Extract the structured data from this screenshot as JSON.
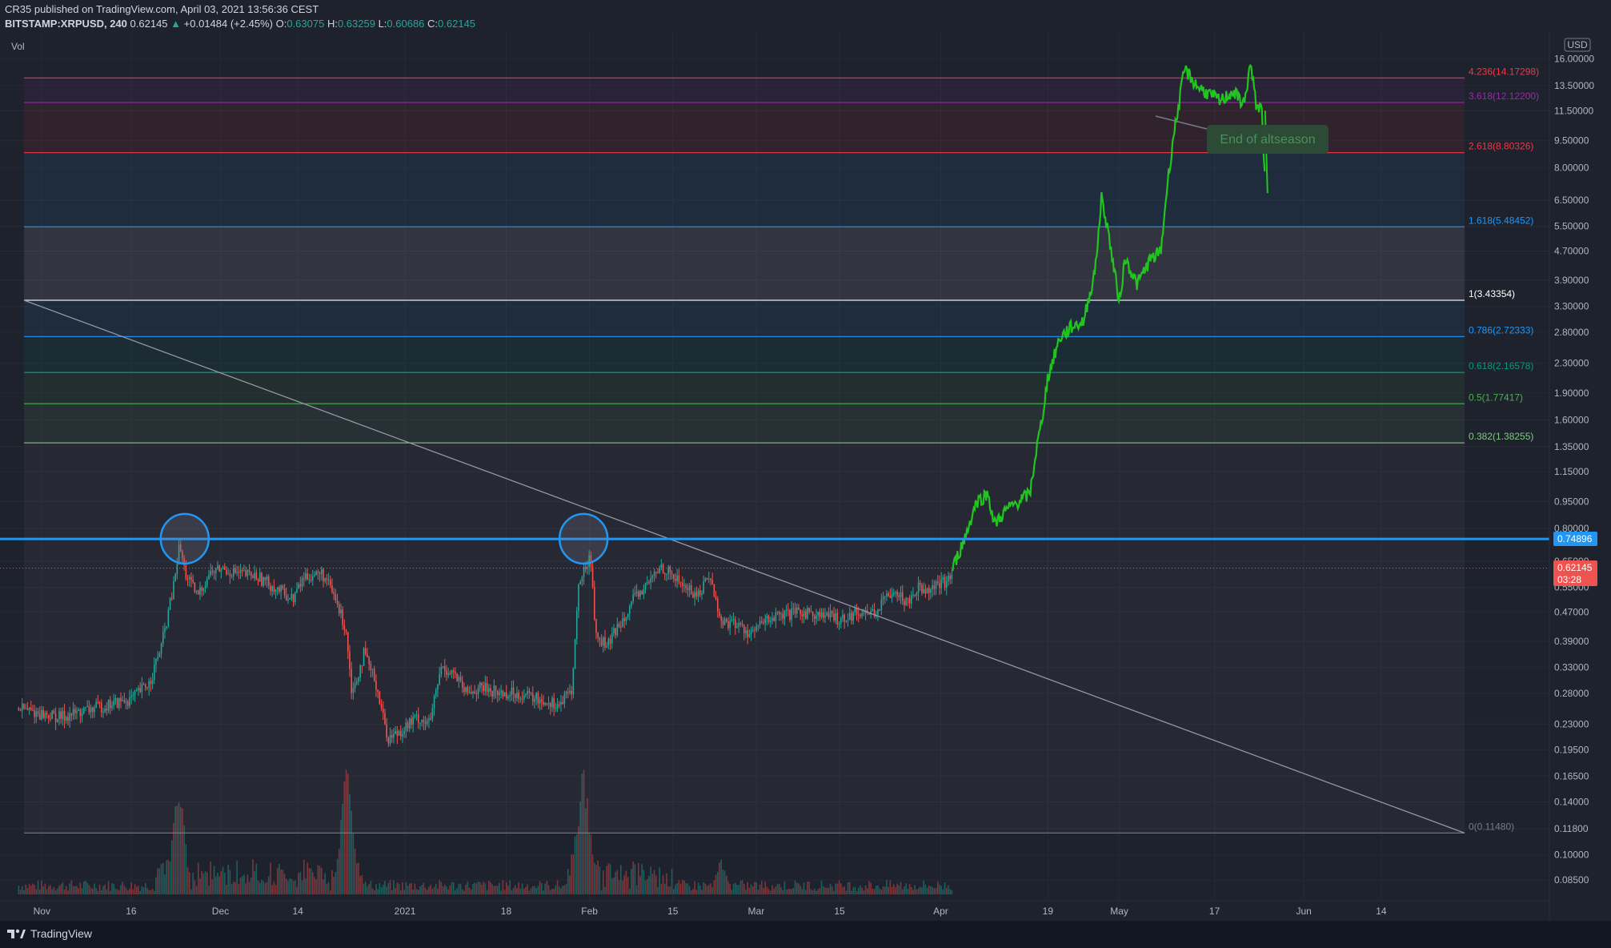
{
  "header": {
    "publisher_line": "CR35 published on TradingView.com, April 03, 2021 13:56:36 CEST",
    "symbol": "BITSTAMP:XRPUSD, 240",
    "last": "0.62145",
    "change": "+0.01484 (+2.45%)",
    "o_label": "O:",
    "o": "0.63075",
    "h_label": "H:",
    "h": "0.63259",
    "l_label": "L:",
    "l": "0.60686",
    "c_label": "C:",
    "c": "0.62145"
  },
  "vol_label": "Vol",
  "currency": "USD",
  "annotation": "End of altseason",
  "price_badge": {
    "price": "0.62145",
    "countdown": "03:28"
  },
  "level_badge": "0.74896",
  "footer": {
    "brand": "TradingView"
  },
  "colors": {
    "bg": "#1e222d",
    "up": "#26a69a",
    "down": "#ef5350",
    "projection": "#22c51f",
    "level_line": "#2196f3"
  },
  "chart_data": {
    "type": "candlestick",
    "y_scale": "log",
    "ylim": [
      0.0745,
      19.0
    ],
    "y_ticks": [
      "16.00000",
      "13.50000",
      "11.50000",
      "9.50000",
      "8.00000",
      "6.50000",
      "5.50000",
      "4.70000",
      "3.90000",
      "3.30000",
      "2.80000",
      "2.30000",
      "1.90000",
      "1.60000",
      "1.35000",
      "1.15000",
      "0.95000",
      "0.80000",
      "0.65000",
      "0.55000",
      "0.47000",
      "0.39000",
      "0.33000",
      "0.28000",
      "0.23000",
      "0.19500",
      "0.16500",
      "0.14000",
      "0.11800",
      "0.10000",
      "0.08500"
    ],
    "x_ticks": [
      {
        "label": "Nov",
        "date": "2020-11-01"
      },
      {
        "label": "16",
        "date": "2020-11-16"
      },
      {
        "label": "Dec",
        "date": "2020-12-01"
      },
      {
        "label": "14",
        "date": "2020-12-14"
      },
      {
        "label": "2021",
        "date": "2021-01-01"
      },
      {
        "label": "18",
        "date": "2021-01-18"
      },
      {
        "label": "Feb",
        "date": "2021-02-01"
      },
      {
        "label": "15",
        "date": "2021-02-15"
      },
      {
        "label": "Mar",
        "date": "2021-03-01"
      },
      {
        "label": "15",
        "date": "2021-03-15"
      },
      {
        "label": "Apr",
        "date": "2021-04-01"
      },
      {
        "label": "19",
        "date": "2021-04-19"
      },
      {
        "label": "May",
        "date": "2021-05-01"
      },
      {
        "label": "17",
        "date": "2021-05-17"
      },
      {
        "label": "Jun",
        "date": "2021-06-01"
      },
      {
        "label": "14",
        "date": "2021-06-14"
      }
    ],
    "price_path": [
      [
        "2020-10-28",
        0.255
      ],
      [
        "2020-11-01",
        0.245
      ],
      [
        "2020-11-04",
        0.24
      ],
      [
        "2020-11-08",
        0.25
      ],
      [
        "2020-11-12",
        0.26
      ],
      [
        "2020-11-16",
        0.27
      ],
      [
        "2020-11-19",
        0.3
      ],
      [
        "2020-11-21",
        0.38
      ],
      [
        "2020-11-23",
        0.55
      ],
      [
        "2020-11-24",
        0.72
      ],
      [
        "2020-11-25",
        0.6
      ],
      [
        "2020-11-27",
        0.52
      ],
      [
        "2020-11-29",
        0.6
      ],
      [
        "2020-12-01",
        0.62
      ],
      [
        "2020-12-04",
        0.6
      ],
      [
        "2020-12-07",
        0.59
      ],
      [
        "2020-12-10",
        0.55
      ],
      [
        "2020-12-13",
        0.51
      ],
      [
        "2020-12-15",
        0.59
      ],
      [
        "2020-12-18",
        0.6
      ],
      [
        "2020-12-20",
        0.52
      ],
      [
        "2020-12-22",
        0.42
      ],
      [
        "2020-12-23",
        0.28
      ],
      [
        "2020-12-25",
        0.36
      ],
      [
        "2020-12-27",
        0.3
      ],
      [
        "2020-12-29",
        0.21
      ],
      [
        "2020-12-31",
        0.22
      ],
      [
        "2021-01-03",
        0.24
      ],
      [
        "2021-01-05",
        0.23
      ],
      [
        "2021-01-07",
        0.33
      ],
      [
        "2021-01-09",
        0.32
      ],
      [
        "2021-01-11",
        0.28
      ],
      [
        "2021-01-14",
        0.29
      ],
      [
        "2021-01-17",
        0.28
      ],
      [
        "2021-01-20",
        0.28
      ],
      [
        "2021-01-23",
        0.27
      ],
      [
        "2021-01-27",
        0.26
      ],
      [
        "2021-01-29",
        0.29
      ],
      [
        "2021-01-30",
        0.55
      ],
      [
        "2021-02-01",
        0.68
      ],
      [
        "2021-02-02",
        0.4
      ],
      [
        "2021-02-04",
        0.38
      ],
      [
        "2021-02-06",
        0.44
      ],
      [
        "2021-02-08",
        0.5
      ],
      [
        "2021-02-11",
        0.57
      ],
      [
        "2021-02-13",
        0.63
      ],
      [
        "2021-02-16",
        0.57
      ],
      [
        "2021-02-19",
        0.52
      ],
      [
        "2021-02-21",
        0.6
      ],
      [
        "2021-02-23",
        0.44
      ],
      [
        "2021-02-25",
        0.44
      ],
      [
        "2021-02-28",
        0.41
      ],
      [
        "2021-03-03",
        0.45
      ],
      [
        "2021-03-06",
        0.46
      ],
      [
        "2021-03-09",
        0.47
      ],
      [
        "2021-03-12",
        0.46
      ],
      [
        "2021-03-15",
        0.45
      ],
      [
        "2021-03-18",
        0.47
      ],
      [
        "2021-03-21",
        0.47
      ],
      [
        "2021-03-24",
        0.55
      ],
      [
        "2021-03-26",
        0.5
      ],
      [
        "2021-03-28",
        0.55
      ],
      [
        "2021-03-30",
        0.55
      ],
      [
        "2021-04-02",
        0.57
      ],
      [
        "2021-04-03",
        0.62
      ]
    ],
    "projection_path": [
      [
        "2021-04-03",
        0.62
      ],
      [
        "2021-04-05",
        0.75
      ],
      [
        "2021-04-07",
        0.95
      ],
      [
        "2021-04-09",
        1.0
      ],
      [
        "2021-04-10",
        0.82
      ],
      [
        "2021-04-12",
        0.9
      ],
      [
        "2021-04-14",
        0.95
      ],
      [
        "2021-04-16",
        1.0
      ],
      [
        "2021-04-17",
        1.3
      ],
      [
        "2021-04-18",
        1.6
      ],
      [
        "2021-04-19",
        2.1
      ],
      [
        "2021-04-21",
        2.7
      ],
      [
        "2021-04-23",
        2.9
      ],
      [
        "2021-04-25",
        3.0
      ],
      [
        "2021-04-27",
        4.2
      ],
      [
        "2021-04-28",
        6.6
      ],
      [
        "2021-04-29",
        5.5
      ],
      [
        "2021-04-30",
        4.3
      ],
      [
        "2021-05-01",
        3.4
      ],
      [
        "2021-05-02",
        4.5
      ],
      [
        "2021-05-04",
        3.8
      ],
      [
        "2021-05-06",
        4.4
      ],
      [
        "2021-05-08",
        4.7
      ],
      [
        "2021-05-09",
        7.0
      ],
      [
        "2021-05-10",
        9.5
      ],
      [
        "2021-05-11",
        12.0
      ],
      [
        "2021-05-12",
        15.0
      ],
      [
        "2021-05-14",
        13.5
      ],
      [
        "2021-05-16",
        12.8
      ],
      [
        "2021-05-18",
        12.2
      ],
      [
        "2021-05-20",
        13.0
      ],
      [
        "2021-05-21",
        12.5
      ],
      [
        "2021-05-22",
        12.0
      ],
      [
        "2021-05-23",
        15.5
      ],
      [
        "2021-05-24",
        12.0
      ],
      [
        "2021-05-25",
        11.5
      ],
      [
        "2021-05-25.5",
        7.0
      ]
    ],
    "volume_peaks": [
      [
        "2020-11-24",
        0.9
      ],
      [
        "2020-12-22",
        1.0
      ],
      [
        "2020-12-23",
        0.45
      ],
      [
        "2021-01-30",
        0.55
      ],
      [
        "2021-01-31",
        1.0
      ],
      [
        "2021-02-23",
        0.3
      ]
    ],
    "fib_levels": [
      {
        "label": "4.236(14.17298)",
        "value": 14.17298,
        "color": "#f23645"
      },
      {
        "label": "3.618(12.12200)",
        "value": 12.122,
        "color": "#9c27b0"
      },
      {
        "label": "2.618(8.80326)",
        "value": 8.80326,
        "color": "#f23645"
      },
      {
        "label": "1.618(5.48452)",
        "value": 5.48452,
        "color": "#2196f3"
      },
      {
        "label": "1(3.43354)",
        "value": 3.43354,
        "color": "#ffffff"
      },
      {
        "label": "0.786(2.72333)",
        "value": 2.72333,
        "color": "#2196f3"
      },
      {
        "label": "0.618(2.16578)",
        "value": 2.16578,
        "color": "#089981"
      },
      {
        "label": "0.5(1.77417)",
        "value": 1.77417,
        "color": "#4caf50"
      },
      {
        "label": "0.382(1.38255)",
        "value": 1.38255,
        "color": "#81c784"
      },
      {
        "label": "0(0.11480)",
        "value": 0.1148,
        "color": "#787b86"
      }
    ],
    "fib_range_dates": [
      "2020-10-29",
      "2021-06-28"
    ],
    "horizontal_level": 0.74896,
    "trendline": [
      [
        "2020-10-29",
        3.43354
      ],
      [
        "2021-06-28",
        0.1148
      ]
    ],
    "circles": [
      [
        "2020-11-25",
        0.75
      ],
      [
        "2021-01-31",
        0.75
      ]
    ]
  }
}
